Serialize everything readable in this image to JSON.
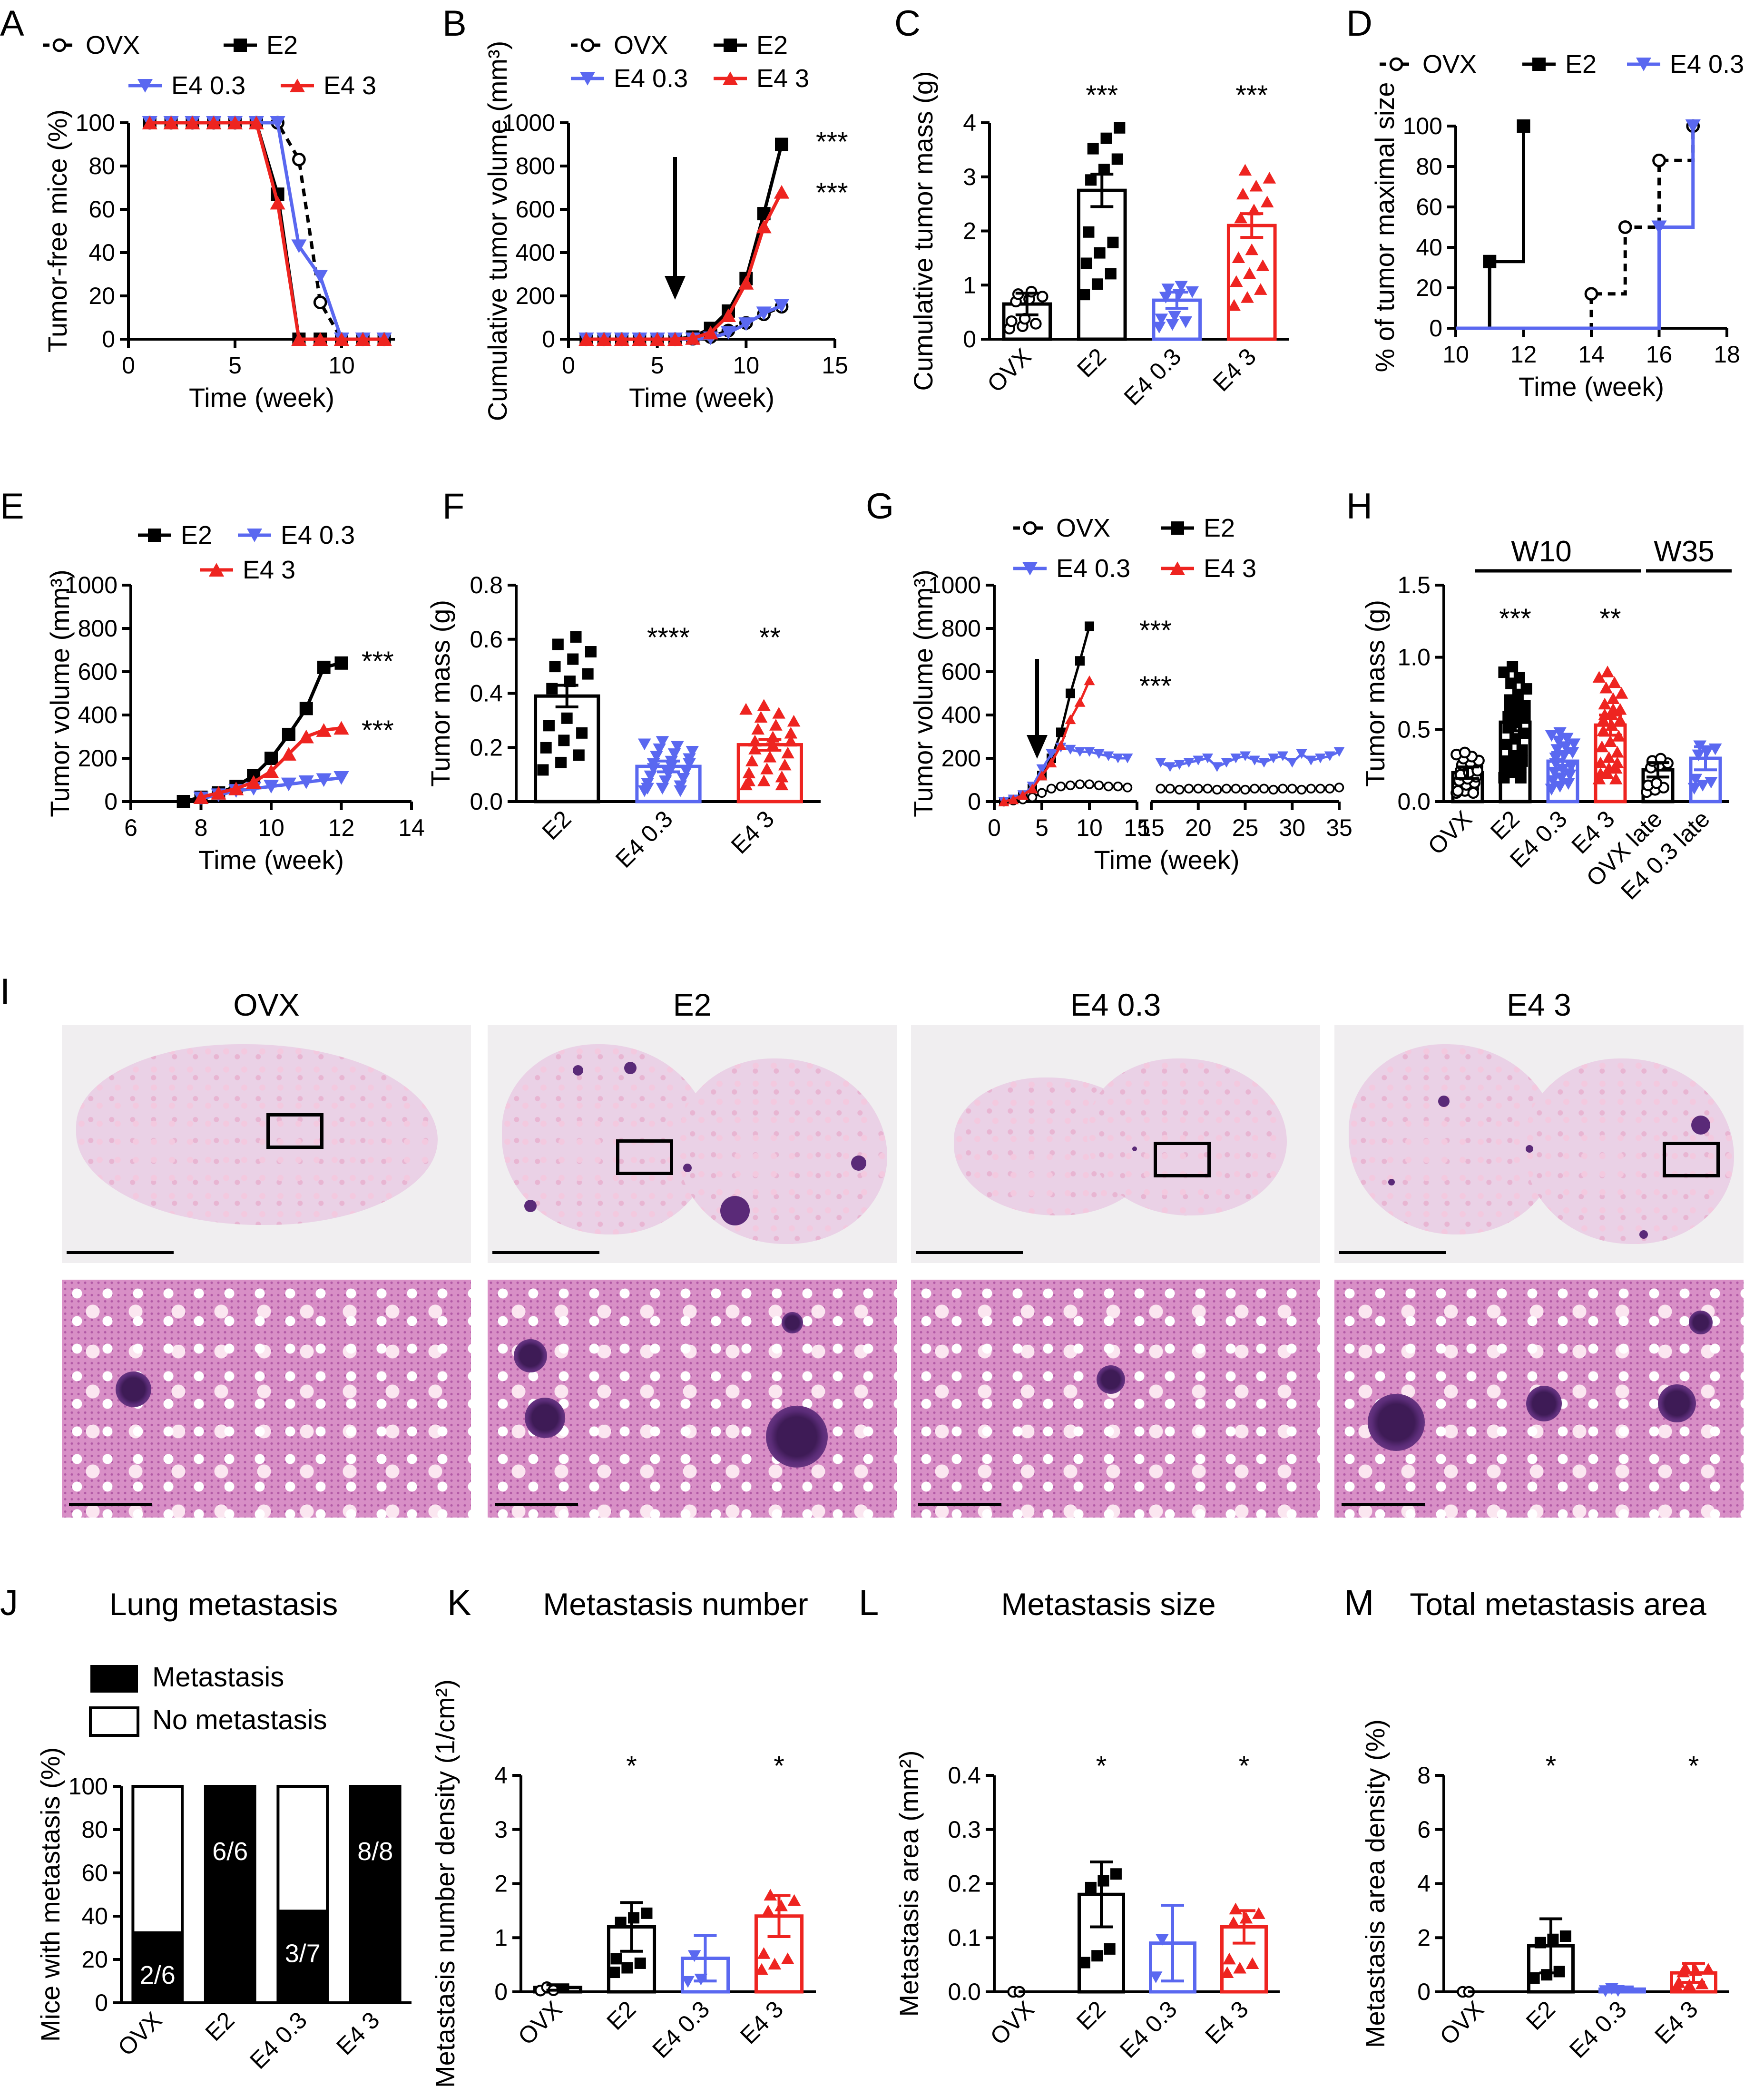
{
  "colors": {
    "ovx": "#000000",
    "e2": "#000000",
    "e403": "#5a68f0",
    "e43": "#ee2420"
  },
  "panel_letters": {
    "A": "A",
    "B": "B",
    "C": "C",
    "D": "D",
    "E": "E",
    "F": "F",
    "G": "G",
    "H": "H",
    "I": "I",
    "J": "J",
    "K": "K",
    "L": "L",
    "M": "M"
  },
  "panel_titles": {
    "I_cols": [
      "OVX",
      "E2",
      "E4 0.3",
      "E4 3"
    ],
    "J": "Lung metastasis",
    "K": "Metastasis number",
    "L": "Metastasis size",
    "M": "Total metastasis area"
  },
  "chart_data": [
    {
      "id": "A",
      "type": "line",
      "ylabel": "Tumor-free mice (%)",
      "xlabel": "Time (week)",
      "xlim": [
        0,
        12.5
      ],
      "ylim": [
        0,
        100
      ],
      "xticks": [
        "0",
        "5",
        "10"
      ],
      "yticks": [
        "0",
        "20",
        "40",
        "60",
        "80",
        "100"
      ],
      "legend": [
        "OVX",
        "E2",
        "E4 0.3",
        "E4 3"
      ],
      "series": [
        {
          "name": "OVX",
          "x": [
            1,
            2,
            3,
            4,
            5,
            6,
            7,
            8,
            9,
            10,
            11,
            12
          ],
          "y": [
            100,
            100,
            100,
            100,
            100,
            100,
            100,
            83,
            17,
            0,
            0,
            0
          ]
        },
        {
          "name": "E2",
          "x": [
            1,
            2,
            3,
            4,
            5,
            6,
            7,
            8,
            9,
            10,
            11,
            12
          ],
          "y": [
            100,
            100,
            100,
            100,
            100,
            100,
            67,
            0,
            0,
            0,
            0,
            0
          ]
        },
        {
          "name": "E4 0.3",
          "x": [
            1,
            2,
            3,
            4,
            5,
            6,
            7,
            8,
            9,
            10,
            11,
            12
          ],
          "y": [
            100,
            100,
            100,
            100,
            100,
            100,
            100,
            43,
            29,
            0,
            0,
            0
          ]
        },
        {
          "name": "E4 3",
          "x": [
            1,
            2,
            3,
            4,
            5,
            6,
            7,
            8,
            9,
            10,
            11,
            12
          ],
          "y": [
            100,
            100,
            100,
            100,
            100,
            100,
            63,
            0,
            0,
            0,
            0,
            0
          ]
        }
      ]
    },
    {
      "id": "B",
      "type": "line",
      "ylabel": "Cumulative tumor volume (mm³)",
      "xlabel": "Time (week)",
      "xlim": [
        0,
        15
      ],
      "ylim": [
        0,
        1000
      ],
      "xticks": [
        "0",
        "5",
        "10",
        "15"
      ],
      "yticks": [
        "0",
        "200",
        "400",
        "600",
        "800",
        "1000"
      ],
      "legend": [
        "OVX",
        "E2",
        "E4 0.3",
        "E4 3"
      ],
      "arrow_at": 6,
      "stars": [
        "***",
        "***"
      ],
      "series": [
        {
          "name": "OVX",
          "x": [
            1,
            2,
            3,
            4,
            5,
            6,
            7,
            8,
            9,
            10,
            11,
            12
          ],
          "y": [
            0,
            0,
            0,
            0,
            0,
            0,
            2,
            10,
            40,
            75,
            115,
            150
          ]
        },
        {
          "name": "E2",
          "x": [
            1,
            2,
            3,
            4,
            5,
            6,
            7,
            8,
            9,
            10,
            11,
            12
          ],
          "y": [
            0,
            0,
            0,
            0,
            0,
            0,
            10,
            50,
            130,
            280,
            580,
            900
          ]
        },
        {
          "name": "E4 0.3",
          "x": [
            1,
            2,
            3,
            4,
            5,
            6,
            7,
            8,
            9,
            10,
            11,
            12
          ],
          "y": [
            0,
            0,
            0,
            0,
            0,
            0,
            0,
            5,
            30,
            70,
            120,
            155
          ]
        },
        {
          "name": "E4 3",
          "x": [
            1,
            2,
            3,
            4,
            5,
            6,
            7,
            8,
            9,
            10,
            11,
            12
          ],
          "y": [
            0,
            0,
            0,
            0,
            0,
            0,
            5,
            30,
            110,
            260,
            520,
            680
          ]
        }
      ]
    },
    {
      "id": "C",
      "type": "bar",
      "ylabel": "Cumulative tumor mass (g)",
      "ylim": [
        0,
        4
      ],
      "yticks": [
        "0",
        "1",
        "2",
        "3",
        "4"
      ],
      "categories": [
        "OVX",
        "E2",
        "E4 0.3",
        "E4 3"
      ],
      "values": [
        0.65,
        2.75,
        0.72,
        2.1
      ],
      "sem": [
        0.2,
        0.3,
        0.15,
        0.22
      ],
      "stars": [
        "",
        "***",
        "",
        "***"
      ]
    },
    {
      "id": "D",
      "type": "line",
      "ylabel": "% of tumor maximal size",
      "xlabel": "Time (week)",
      "xlim": [
        10,
        18
      ],
      "ylim": [
        0,
        100
      ],
      "xticks": [
        "10",
        "12",
        "14",
        "16",
        "18"
      ],
      "yticks": [
        "0",
        "20",
        "40",
        "60",
        "80",
        "100"
      ],
      "legend": [
        "OVX",
        "E2",
        "E4 0.3"
      ],
      "series": [
        {
          "name": "OVX",
          "x": [
            10,
            14,
            15,
            16,
            17
          ],
          "y": [
            0,
            17,
            50,
            83,
            100
          ]
        },
        {
          "name": "E2",
          "x": [
            10,
            11,
            12
          ],
          "y": [
            0,
            33,
            100
          ]
        },
        {
          "name": "E4 0.3",
          "x": [
            10,
            16,
            17
          ],
          "y": [
            0,
            50,
            100
          ]
        }
      ]
    },
    {
      "id": "E",
      "type": "line",
      "ylabel": "Tumor volume (mm³)",
      "xlabel": "Time (week)",
      "xlim": [
        6,
        14
      ],
      "ylim": [
        0,
        1000
      ],
      "xticks": [
        "6",
        "8",
        "10",
        "12",
        "14"
      ],
      "yticks": [
        "0",
        "200",
        "400",
        "600",
        "800",
        "1000"
      ],
      "legend": [
        "E2",
        "E4 0.3",
        "E4 3"
      ],
      "stars": [
        "***",
        "***"
      ],
      "series": [
        {
          "name": "E2",
          "x": [
            7.5,
            8,
            8.5,
            9,
            9.5,
            10,
            10.5,
            11,
            11.5,
            12
          ],
          "y": [
            0,
            20,
            40,
            70,
            120,
            200,
            310,
            430,
            620,
            640
          ]
        },
        {
          "name": "E4 0.3",
          "x": [
            8,
            8.5,
            9,
            9.5,
            10,
            10.5,
            11,
            11.5,
            12
          ],
          "y": [
            15,
            30,
            50,
            60,
            70,
            80,
            90,
            100,
            110
          ]
        },
        {
          "name": "E4 3",
          "x": [
            8,
            8.5,
            9,
            9.5,
            10,
            10.5,
            11,
            11.5,
            12
          ],
          "y": [
            20,
            40,
            60,
            90,
            140,
            220,
            300,
            330,
            340
          ]
        }
      ]
    },
    {
      "id": "F",
      "type": "bar",
      "ylabel": "Tumor mass (g)",
      "ylim": [
        0,
        0.8
      ],
      "yticks": [
        "0.0",
        "0.2",
        "0.4",
        "0.6",
        "0.8"
      ],
      "categories": [
        "E2",
        "E4 0.3",
        "E4 3"
      ],
      "values": [
        0.39,
        0.13,
        0.21
      ],
      "sem": [
        0.04,
        0.02,
        0.02
      ],
      "stars": [
        "",
        "****",
        "**"
      ]
    },
    {
      "id": "G",
      "type": "line",
      "ylabel": "Tumor volume (mm³)",
      "xlabel": "Time (week)",
      "ylim": [
        0,
        1000
      ],
      "xticks_left": [
        "0",
        "5",
        "10",
        "15"
      ],
      "xticks_right": [
        "15",
        "20",
        "25",
        "30",
        "35"
      ],
      "yticks": [
        "0",
        "200",
        "400",
        "600",
        "800",
        "1000"
      ],
      "legend": [
        "OVX",
        "E2",
        "E4 0.3",
        "E4 3"
      ],
      "arrow_at": 4.5,
      "stars": [
        "***",
        "***"
      ],
      "series": [
        {
          "name": "OVX",
          "x": [
            1,
            2,
            3,
            4,
            5,
            6,
            7,
            8,
            9,
            10,
            11,
            12,
            13,
            14
          ],
          "y": [
            0,
            5,
            10,
            20,
            40,
            60,
            70,
            75,
            80,
            80,
            75,
            70,
            70,
            65
          ]
        },
        {
          "name": "E2",
          "x": [
            1,
            2,
            3,
            4,
            5,
            6,
            7,
            8,
            9,
            10
          ],
          "y": [
            0,
            10,
            30,
            60,
            120,
            200,
            320,
            500,
            650,
            810
          ]
        },
        {
          "name": "E4 0.3",
          "x": [
            1,
            2,
            3,
            4,
            5,
            6,
            7,
            8,
            9,
            10,
            11,
            12,
            13,
            14
          ],
          "y": [
            0,
            10,
            30,
            70,
            150,
            220,
            250,
            240,
            230,
            230,
            220,
            210,
            200,
            200
          ]
        },
        {
          "name": "E4 3",
          "x": [
            1,
            2,
            3,
            4,
            5,
            6,
            7,
            8,
            9,
            10
          ],
          "y": [
            0,
            10,
            30,
            60,
            120,
            180,
            260,
            380,
            460,
            560
          ]
        },
        {
          "name": "OVX late",
          "x": [
            16,
            17,
            18,
            19,
            20,
            21,
            22,
            23,
            24,
            25,
            26,
            27,
            28,
            29,
            30,
            31,
            32,
            33,
            34,
            35
          ],
          "y": [
            60,
            60,
            55,
            60,
            60,
            60,
            55,
            60,
            60,
            55,
            60,
            60,
            55,
            60,
            60,
            55,
            60,
            60,
            60,
            65
          ]
        },
        {
          "name": "E4 0.3 late",
          "x": [
            16,
            17,
            18,
            19,
            20,
            21,
            22,
            23,
            24,
            25,
            26,
            27,
            28,
            29,
            30,
            31,
            32,
            33,
            34,
            35
          ],
          "y": [
            180,
            160,
            170,
            180,
            190,
            200,
            160,
            180,
            200,
            210,
            190,
            180,
            200,
            210,
            180,
            220,
            190,
            200,
            210,
            230
          ]
        }
      ]
    },
    {
      "id": "H",
      "type": "bar",
      "ylabel": "Tumor mass (g)",
      "ylim": [
        0,
        1.5
      ],
      "yticks": [
        "0.0",
        "0.5",
        "1.0",
        "1.5"
      ],
      "categories": [
        "OVX",
        "E2",
        "E4 0.3",
        "E4 3",
        "OVX late",
        "E4 0.3 late"
      ],
      "values": [
        0.2,
        0.55,
        0.28,
        0.53,
        0.22,
        0.3
      ],
      "sem": [
        0.04,
        0.06,
        0.06,
        0.07,
        0.05,
        0.08
      ],
      "stars": [
        "",
        "***",
        "",
        "**",
        "",
        ""
      ],
      "groups": [
        "W10",
        "W35"
      ]
    },
    {
      "id": "J",
      "type": "bar",
      "ylabel": "Mice with metastasis (%)",
      "ylim": [
        0,
        100
      ],
      "yticks": [
        "0",
        "20",
        "40",
        "60",
        "80",
        "100"
      ],
      "categories": [
        "OVX",
        "E2",
        "E4 0.3",
        "E4 3"
      ],
      "values": [
        33,
        100,
        43,
        100
      ],
      "labels": [
        "2/6",
        "6/6",
        "3/7",
        "8/8"
      ],
      "legend": [
        "Metastasis",
        "No metastasis"
      ]
    },
    {
      "id": "K",
      "type": "bar",
      "ylabel": "Metastasis number density (1/cm²)",
      "ylim": [
        0,
        4
      ],
      "yticks": [
        "0",
        "1",
        "2",
        "3",
        "4"
      ],
      "categories": [
        "OVX",
        "E2",
        "E4 0.3",
        "E4 3"
      ],
      "values": [
        0.08,
        1.2,
        0.62,
        1.4
      ],
      "sem": [
        0.05,
        0.45,
        0.42,
        0.38
      ],
      "stars": [
        "",
        "*",
        "",
        "*"
      ]
    },
    {
      "id": "L",
      "type": "bar",
      "ylabel": "Metastasis area (mm²)",
      "ylim": [
        0,
        0.4
      ],
      "yticks": [
        "0.0",
        "0.1",
        "0.2",
        "0.3",
        "0.4"
      ],
      "categories": [
        "OVX",
        "E2",
        "E4 0.3",
        "E4 3"
      ],
      "values": [
        0.0,
        0.18,
        0.09,
        0.12
      ],
      "sem": [
        0,
        0.06,
        0.07,
        0.03
      ],
      "stars": [
        "",
        "*",
        "",
        "*"
      ]
    },
    {
      "id": "M",
      "type": "bar",
      "ylabel": "Metastasis area density (%)",
      "ylim": [
        0,
        8
      ],
      "yticks": [
        "0",
        "2",
        "4",
        "6",
        "8"
      ],
      "categories": [
        "OVX",
        "E2",
        "E4 0.3",
        "E4 3"
      ],
      "values": [
        0.0,
        1.7,
        0.1,
        0.7
      ],
      "sem": [
        0,
        1.0,
        0.08,
        0.35
      ],
      "stars": [
        "",
        "*",
        "",
        "*"
      ]
    }
  ]
}
